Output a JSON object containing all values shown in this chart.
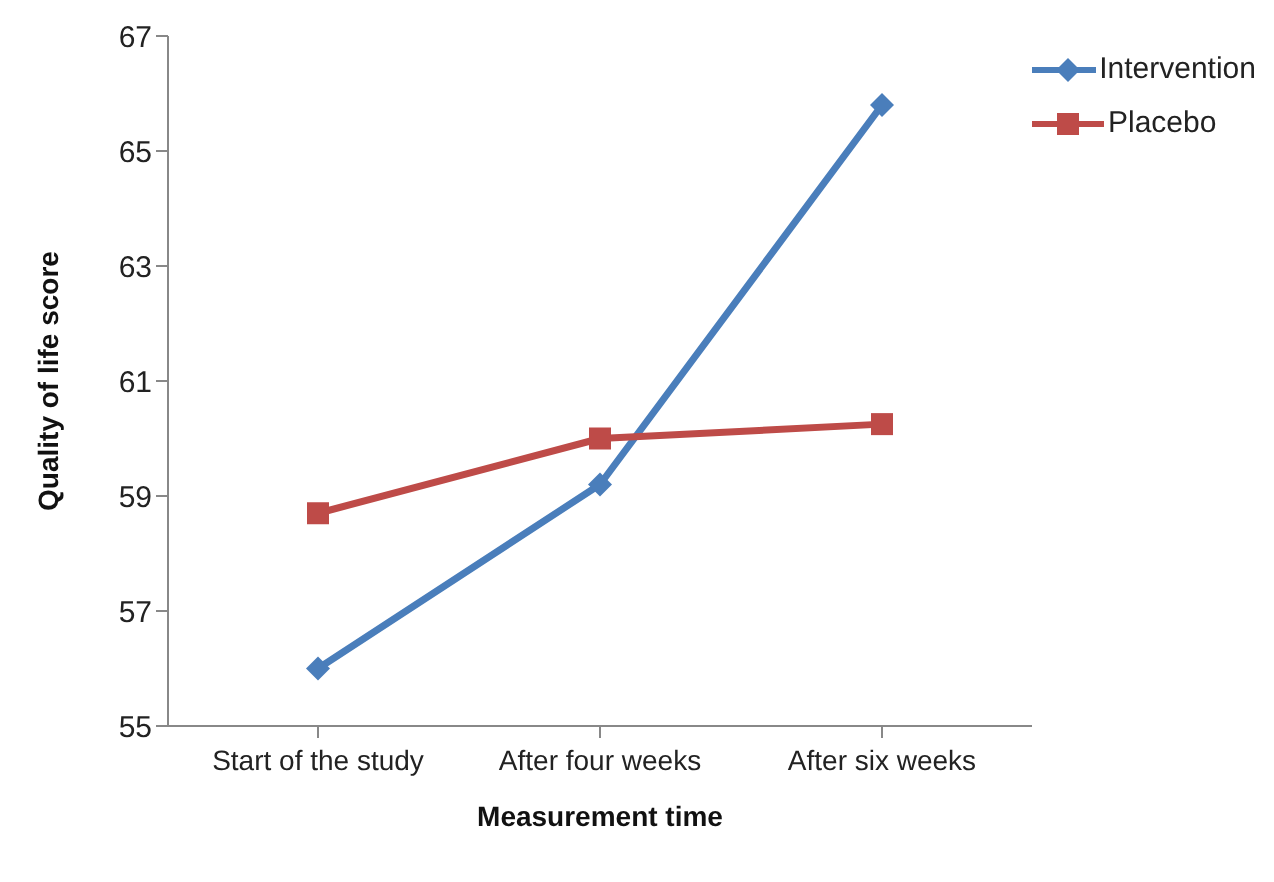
{
  "chart_data": {
    "type": "line",
    "xlabel": "Measurement time",
    "ylabel": "Quality of life score",
    "categories": [
      "Start of the study",
      "After four weeks",
      "After six weeks"
    ],
    "series": [
      {
        "name": "Intervention",
        "color": "#4a7ebb",
        "marker": "diamond",
        "values": [
          56.0,
          59.2,
          65.8
        ]
      },
      {
        "name": "Placebo",
        "color": "#be4b48",
        "marker": "square",
        "values": [
          58.7,
          60.0,
          60.25
        ]
      }
    ],
    "ylim": [
      55,
      67
    ],
    "yticks": [
      55,
      57,
      59,
      61,
      63,
      65,
      67
    ],
    "grid": false,
    "legend": "top right"
  }
}
